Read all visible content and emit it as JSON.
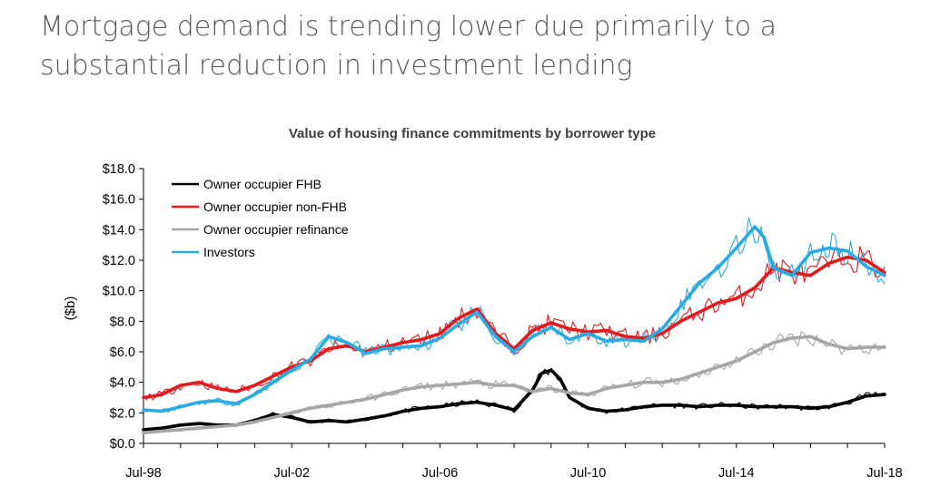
{
  "headline": {
    "line1": "Mortgage demand is trending lower due primarily to a",
    "line2": "substantial reduction in investment lending"
  },
  "chart_data": {
    "type": "line",
    "title": "Value of housing finance commitments by borrower type",
    "xlabel": "",
    "ylabel": "($b)",
    "x_range": [
      "Jul-98",
      "Jul-18"
    ],
    "x_ticks": [
      "Jul-98",
      "Jul-02",
      "Jul-06",
      "Jul-10",
      "Jul-14",
      "Jul-18"
    ],
    "ylim": [
      0,
      18
    ],
    "y_ticks": [
      "$0.0",
      "$2.0",
      "$4.0",
      "$6.0",
      "$8.0",
      "$10.0",
      "$12.0",
      "$14.0",
      "$16.0",
      "$18.0"
    ],
    "grid": false,
    "legend_position": "top-left",
    "series": [
      {
        "name": "Owner occupier FHB",
        "color": "#000000",
        "trend_points": [
          [
            "Jul-98",
            0.9
          ],
          [
            "Jan-99",
            1.0
          ],
          [
            "Jul-99",
            1.2
          ],
          [
            "Jan-00",
            1.3
          ],
          [
            "Jul-00",
            1.2
          ],
          [
            "Jan-01",
            1.2
          ],
          [
            "Jul-01",
            1.5
          ],
          [
            "Jan-02",
            1.9
          ],
          [
            "Jul-02",
            1.7
          ],
          [
            "Jan-03",
            1.4
          ],
          [
            "Jul-03",
            1.5
          ],
          [
            "Jan-04",
            1.4
          ],
          [
            "Jul-04",
            1.6
          ],
          [
            "Jan-05",
            1.8
          ],
          [
            "Jul-05",
            2.1
          ],
          [
            "Jan-06",
            2.3
          ],
          [
            "Jul-06",
            2.4
          ],
          [
            "Jan-07",
            2.6
          ],
          [
            "Jul-07",
            2.7
          ],
          [
            "Jan-08",
            2.5
          ],
          [
            "Jul-08",
            2.2
          ],
          [
            "Jan-09",
            3.5
          ],
          [
            "Apr-09",
            4.6
          ],
          [
            "Jul-09",
            4.8
          ],
          [
            "Oct-09",
            4.2
          ],
          [
            "Jan-10",
            3.0
          ],
          [
            "Jul-10",
            2.3
          ],
          [
            "Jan-11",
            2.1
          ],
          [
            "Jul-11",
            2.2
          ],
          [
            "Jan-12",
            2.4
          ],
          [
            "Jul-12",
            2.5
          ],
          [
            "Jan-13",
            2.5
          ],
          [
            "Jul-13",
            2.4
          ],
          [
            "Jan-14",
            2.5
          ],
          [
            "Jul-14",
            2.5
          ],
          [
            "Jan-15",
            2.4
          ],
          [
            "Jul-15",
            2.4
          ],
          [
            "Jan-16",
            2.4
          ],
          [
            "Jul-16",
            2.3
          ],
          [
            "Jan-17",
            2.4
          ],
          [
            "Jul-17",
            2.7
          ],
          [
            "Jan-18",
            3.1
          ],
          [
            "Jul-18",
            3.2
          ]
        ]
      },
      {
        "name": "Owner occupier non-FHB",
        "color": "#e31a1c",
        "trend_points": [
          [
            "Jul-98",
            3.0
          ],
          [
            "Jan-99",
            3.2
          ],
          [
            "Jul-99",
            3.8
          ],
          [
            "Jan-00",
            4.0
          ],
          [
            "Jul-00",
            3.6
          ],
          [
            "Jan-01",
            3.4
          ],
          [
            "Jul-01",
            3.8
          ],
          [
            "Jan-02",
            4.4
          ],
          [
            "Jul-02",
            5.0
          ],
          [
            "Jan-03",
            5.4
          ],
          [
            "Jul-03",
            6.2
          ],
          [
            "Jan-04",
            6.4
          ],
          [
            "Jul-04",
            6.0
          ],
          [
            "Jan-05",
            6.3
          ],
          [
            "Jul-05",
            6.6
          ],
          [
            "Jan-06",
            6.8
          ],
          [
            "Jul-06",
            7.2
          ],
          [
            "Jan-07",
            8.2
          ],
          [
            "Jul-07",
            8.8
          ],
          [
            "Jan-08",
            7.2
          ],
          [
            "Jul-08",
            6.2
          ],
          [
            "Jan-09",
            7.4
          ],
          [
            "Jul-09",
            7.9
          ],
          [
            "Jan-10",
            7.5
          ],
          [
            "Jul-10",
            7.3
          ],
          [
            "Jan-11",
            7.4
          ],
          [
            "Jul-11",
            7.0
          ],
          [
            "Jan-12",
            6.9
          ],
          [
            "Jul-12",
            7.2
          ],
          [
            "Jan-13",
            8.0
          ],
          [
            "Jul-13",
            8.6
          ],
          [
            "Jan-14",
            9.2
          ],
          [
            "Jul-14",
            9.5
          ],
          [
            "Jan-15",
            10.2
          ],
          [
            "Jul-15",
            11.5
          ],
          [
            "Jan-16",
            11.2
          ],
          [
            "Jul-16",
            11.0
          ],
          [
            "Jan-17",
            11.8
          ],
          [
            "Jul-17",
            12.2
          ],
          [
            "Jan-18",
            12.0
          ],
          [
            "Jul-18",
            11.2
          ]
        ]
      },
      {
        "name": "Owner occupier refinance",
        "color": "#a6a6a6",
        "trend_points": [
          [
            "Jul-98",
            0.7
          ],
          [
            "Jan-99",
            0.8
          ],
          [
            "Jul-99",
            0.9
          ],
          [
            "Jan-00",
            1.0
          ],
          [
            "Jul-00",
            1.1
          ],
          [
            "Jan-01",
            1.2
          ],
          [
            "Jul-01",
            1.4
          ],
          [
            "Jan-02",
            1.7
          ],
          [
            "Jul-02",
            2.0
          ],
          [
            "Jan-03",
            2.3
          ],
          [
            "Jul-03",
            2.5
          ],
          [
            "Jan-04",
            2.7
          ],
          [
            "Jul-04",
            2.9
          ],
          [
            "Jan-05",
            3.2
          ],
          [
            "Jul-05",
            3.5
          ],
          [
            "Jan-06",
            3.7
          ],
          [
            "Jul-06",
            3.8
          ],
          [
            "Jan-07",
            3.9
          ],
          [
            "Jul-07",
            4.0
          ],
          [
            "Jan-08",
            3.8
          ],
          [
            "Jul-08",
            3.8
          ],
          [
            "Jan-09",
            3.4
          ],
          [
            "Jul-09",
            3.6
          ],
          [
            "Jan-10",
            3.3
          ],
          [
            "Jul-10",
            3.2
          ],
          [
            "Jan-11",
            3.6
          ],
          [
            "Jul-11",
            3.8
          ],
          [
            "Jan-12",
            4.0
          ],
          [
            "Jul-12",
            4.0
          ],
          [
            "Jan-13",
            4.2
          ],
          [
            "Jul-13",
            4.6
          ],
          [
            "Jan-14",
            5.0
          ],
          [
            "Jul-14",
            5.4
          ],
          [
            "Jan-15",
            6.0
          ],
          [
            "Jul-15",
            6.6
          ],
          [
            "Jan-16",
            6.9
          ],
          [
            "Jul-16",
            7.0
          ],
          [
            "Jan-17",
            6.5
          ],
          [
            "Jul-17",
            6.2
          ],
          [
            "Jan-18",
            6.3
          ],
          [
            "Jul-18",
            6.3
          ]
        ]
      },
      {
        "name": "Investors",
        "color": "#29abe2",
        "trend_points": [
          [
            "Jul-98",
            2.2
          ],
          [
            "Jan-99",
            2.1
          ],
          [
            "Jul-99",
            2.4
          ],
          [
            "Jan-00",
            2.7
          ],
          [
            "Jul-00",
            2.8
          ],
          [
            "Jan-01",
            2.6
          ],
          [
            "Jul-01",
            3.2
          ],
          [
            "Jan-02",
            4.0
          ],
          [
            "Jul-02",
            4.8
          ],
          [
            "Jan-03",
            5.5
          ],
          [
            "Jul-03",
            7.0
          ],
          [
            "Jan-04",
            6.6
          ],
          [
            "Jul-04",
            5.9
          ],
          [
            "Jan-05",
            6.2
          ],
          [
            "Jul-05",
            6.3
          ],
          [
            "Jan-06",
            6.4
          ],
          [
            "Jul-06",
            6.9
          ],
          [
            "Jan-07",
            7.8
          ],
          [
            "Jul-07",
            8.6
          ],
          [
            "Jan-08",
            7.0
          ],
          [
            "Jul-08",
            6.0
          ],
          [
            "Jan-09",
            7.0
          ],
          [
            "Jul-09",
            7.6
          ],
          [
            "Jan-10",
            6.8
          ],
          [
            "Jul-10",
            7.2
          ],
          [
            "Jan-11",
            6.7
          ],
          [
            "Jul-11",
            6.8
          ],
          [
            "Jan-12",
            6.7
          ],
          [
            "Jul-12",
            7.5
          ],
          [
            "Jan-13",
            9.0
          ],
          [
            "Jul-13",
            10.5
          ],
          [
            "Jan-14",
            11.5
          ],
          [
            "Jul-14",
            12.8
          ],
          [
            "Jan-15",
            14.2
          ],
          [
            "Apr-15",
            13.5
          ],
          [
            "Jul-15",
            11.5
          ],
          [
            "Jan-16",
            11.0
          ],
          [
            "Jul-16",
            12.5
          ],
          [
            "Jan-17",
            12.8
          ],
          [
            "Jul-17",
            12.6
          ],
          [
            "Jan-18",
            11.6
          ],
          [
            "Jul-18",
            11.0
          ]
        ]
      }
    ]
  }
}
